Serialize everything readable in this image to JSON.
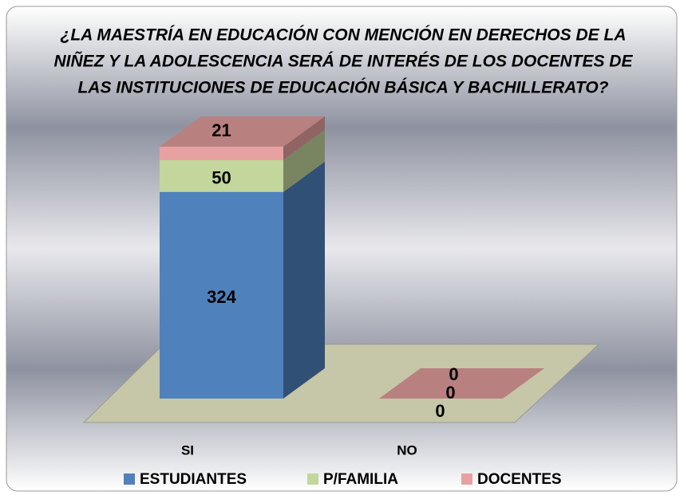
{
  "chart_data": {
    "type": "bar3d_stacked",
    "title": [
      "¿LA MAESTRÍA EN EDUCACIÓN CON MENCIÓN EN DERECHOS DE LA",
      "NIÑEZ Y LA ADOLESCENCIA SERÁ DE INTERÉS DE LOS DOCENTES DE",
      "LAS INSTITUCIONES DE EDUCACIÓN BÁSICA Y BACHILLERATO?"
    ],
    "categories": [
      "SI",
      "NO"
    ],
    "series": [
      {
        "name": "ESTUDIANTES",
        "color": "#4f81bd",
        "values": [
          324,
          0
        ]
      },
      {
        "name": "P/FAMILIA",
        "color": "#c3d69b",
        "values": [
          50,
          0
        ]
      },
      {
        "name": "DOCENTES",
        "color": "#e6a1a0",
        "values": [
          21,
          0
        ]
      }
    ],
    "legend": "bottom"
  }
}
